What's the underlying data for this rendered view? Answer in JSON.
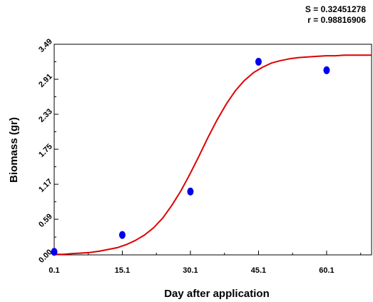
{
  "stats": {
    "s": "S = 0.32451278",
    "r": "r = 0.98816906"
  },
  "chart_data": {
    "type": "scatter",
    "title": "",
    "xlabel": "Day after application",
    "ylabel": "Biomass (gr)",
    "xlim": [
      0.1,
      70
    ],
    "ylim": [
      0.0,
      3.49
    ],
    "x_ticks": [
      0.1,
      15.1,
      30.1,
      45.1,
      60.1
    ],
    "x_tick_labels": [
      "0.1",
      "15.1",
      "30.1",
      "45.1",
      "60.1"
    ],
    "y_ticks": [
      0.0,
      0.59,
      1.17,
      1.75,
      2.33,
      2.91,
      3.49
    ],
    "y_tick_labels": [
      "0.00",
      "0.59",
      "1.17",
      "1.75",
      "2.33",
      "2.91",
      "3.49"
    ],
    "grid": false,
    "series": [
      {
        "type": "scatter",
        "color": "#0000ee",
        "x": [
          0.1,
          15.1,
          30.1,
          45.1,
          60.1
        ],
        "y": [
          0.05,
          0.33,
          1.05,
          3.2,
          3.06
        ]
      },
      {
        "type": "line",
        "color": "#dd0000",
        "x": [
          0,
          2,
          4,
          6,
          8,
          10,
          12,
          14,
          16,
          18,
          20,
          22,
          24,
          26,
          28,
          30,
          32,
          34,
          36,
          38,
          40,
          42,
          44,
          46,
          48,
          50,
          52,
          54,
          56,
          58,
          60,
          62,
          64,
          66,
          68,
          70
        ],
        "y": [
          0.01,
          0.01,
          0.02,
          0.03,
          0.04,
          0.06,
          0.09,
          0.12,
          0.17,
          0.24,
          0.33,
          0.45,
          0.61,
          0.82,
          1.06,
          1.34,
          1.64,
          1.95,
          2.24,
          2.5,
          2.72,
          2.89,
          3.02,
          3.11,
          3.18,
          3.22,
          3.25,
          3.27,
          3.28,
          3.29,
          3.3,
          3.3,
          3.31,
          3.31,
          3.31,
          3.31
        ]
      }
    ]
  }
}
